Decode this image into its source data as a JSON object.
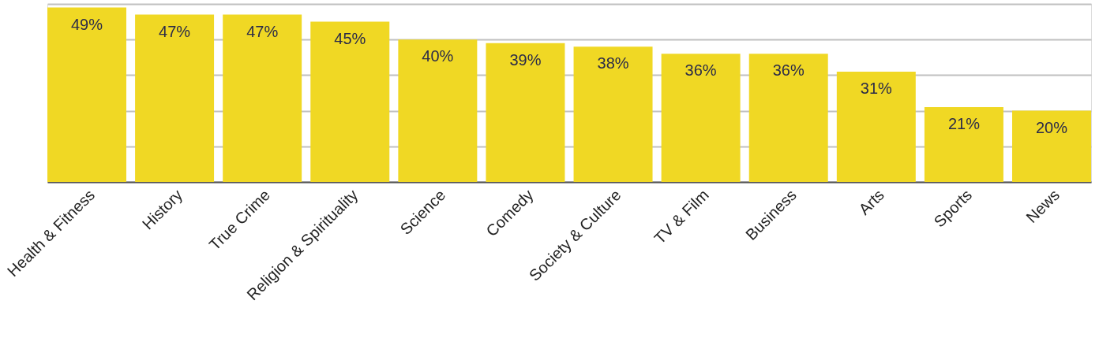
{
  "chart_data": {
    "type": "bar",
    "categories": [
      "Health & Fitness",
      "History",
      "True Crime",
      "Religion & Spirituality",
      "Science",
      "Comedy",
      "Society & Culture",
      "TV & Film",
      "Business",
      "Arts",
      "Sports",
      "News"
    ],
    "values": [
      49,
      47,
      47,
      45,
      40,
      39,
      38,
      36,
      36,
      31,
      21,
      20
    ],
    "value_labels": [
      "49%",
      "47%",
      "47%",
      "45%",
      "40%",
      "39%",
      "38%",
      "36%",
      "36%",
      "31%",
      "21%",
      "20%"
    ],
    "color": "#f0d824",
    "ylim": [
      0,
      50
    ],
    "yticks": [
      {
        "value": 0,
        "label": null
      },
      {
        "value": 10,
        "label": null
      },
      {
        "value": 20,
        "label": null
      },
      {
        "value": 30,
        "label": null
      },
      {
        "value": 40,
        "label": null
      },
      {
        "value": 50,
        "label": null
      }
    ],
    "grid": "y",
    "tick_labels": "x"
  }
}
